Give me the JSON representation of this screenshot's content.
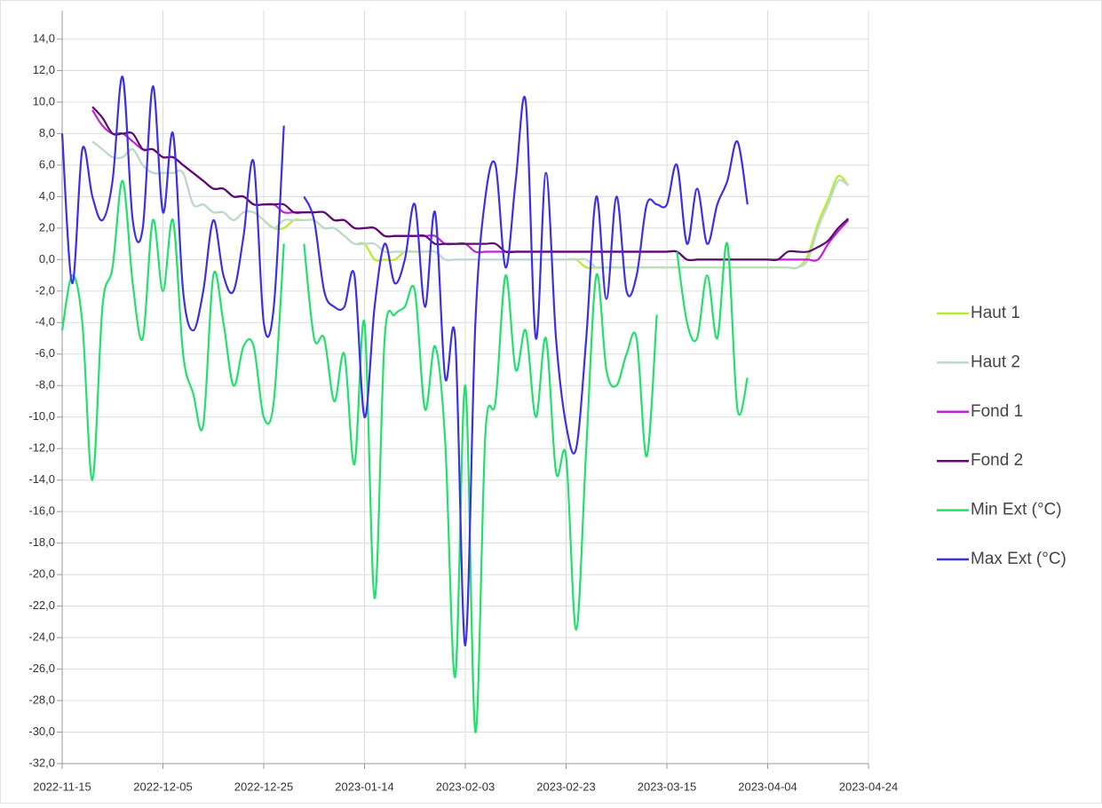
{
  "chart_data": {
    "type": "line",
    "x": [
      "2022-11-15",
      "2022-11-17",
      "2022-11-19",
      "2022-11-21",
      "2022-11-23",
      "2022-11-25",
      "2022-11-27",
      "2022-11-29",
      "2022-12-01",
      "2022-12-03",
      "2022-12-05",
      "2022-12-07",
      "2022-12-09",
      "2022-12-11",
      "2022-12-13",
      "2022-12-15",
      "2022-12-17",
      "2022-12-19",
      "2022-12-21",
      "2022-12-23",
      "2022-12-25",
      "2022-12-27",
      "2022-12-29",
      "2022-12-31",
      "2023-01-02",
      "2023-01-04",
      "2023-01-06",
      "2023-01-08",
      "2023-01-10",
      "2023-01-12",
      "2023-01-14",
      "2023-01-16",
      "2023-01-18",
      "2023-01-20",
      "2023-01-22",
      "2023-01-24",
      "2023-01-26",
      "2023-01-28",
      "2023-01-30",
      "2023-02-01",
      "2023-02-03",
      "2023-02-05",
      "2023-02-07",
      "2023-02-09",
      "2023-02-11",
      "2023-02-13",
      "2023-02-15",
      "2023-02-17",
      "2023-02-19",
      "2023-02-21",
      "2023-02-23",
      "2023-02-25",
      "2023-02-27",
      "2023-03-01",
      "2023-03-03",
      "2023-03-05",
      "2023-03-07",
      "2023-03-09",
      "2023-03-11",
      "2023-03-13",
      "2023-03-15",
      "2023-03-17",
      "2023-03-19",
      "2023-03-21",
      "2023-03-23",
      "2023-03-25",
      "2023-03-27",
      "2023-03-29",
      "2023-03-31",
      "2023-04-02",
      "2023-04-04",
      "2023-04-06",
      "2023-04-08",
      "2023-04-10",
      "2023-04-12",
      "2023-04-14",
      "2023-04-16",
      "2023-04-18",
      "2023-04-20"
    ],
    "xlim": [
      "2022-11-15",
      "2023-04-24"
    ],
    "xticks": [
      "2022-11-15",
      "2022-12-05",
      "2022-12-25",
      "2023-01-14",
      "2023-02-03",
      "2023-02-23",
      "2023-03-15",
      "2023-04-04",
      "2023-04-24"
    ],
    "ylim": [
      -32,
      14
    ],
    "yticks": [
      {
        "value": 14,
        "label": "14,0"
      },
      {
        "value": 12,
        "label": "12,0"
      },
      {
        "value": 10,
        "label": "10,0"
      },
      {
        "value": 8,
        "label": "8,0"
      },
      {
        "value": 6,
        "label": "6,0"
      },
      {
        "value": 4,
        "label": "4,0"
      },
      {
        "value": 2,
        "label": "2,0"
      },
      {
        "value": 0,
        "label": "0,0"
      },
      {
        "value": -2,
        "label": "-2,0"
      },
      {
        "value": -4,
        "label": "-4,0"
      },
      {
        "value": -6,
        "label": "-6,0"
      },
      {
        "value": -8,
        "label": "-8,0"
      },
      {
        "value": -10,
        "label": "-10,0"
      },
      {
        "value": -12,
        "label": "-12,0"
      },
      {
        "value": -14,
        "label": "-14,0"
      },
      {
        "value": -16,
        "label": "-16,0"
      },
      {
        "value": -18,
        "label": "-18,0"
      },
      {
        "value": -20,
        "label": "-20,0"
      },
      {
        "value": -22,
        "label": "-22,0"
      },
      {
        "value": -24,
        "label": "-24,0"
      },
      {
        "value": -26,
        "label": "-26,0"
      },
      {
        "value": -28,
        "label": "-28,0"
      },
      {
        "value": -30,
        "label": "-30,0"
      },
      {
        "value": -32,
        "label": "-32,0"
      }
    ],
    "grid": true,
    "legend": "right",
    "series": [
      {
        "name": "Haut 1",
        "color": "#b8ec2a",
        "values": [
          null,
          null,
          null,
          7.5,
          7,
          6.5,
          6.5,
          7,
          6,
          5.5,
          5.5,
          5.5,
          5.5,
          3.5,
          3.5,
          3,
          3,
          2.5,
          3,
          3,
          2.5,
          2,
          2,
          2.5,
          2.5,
          2.5,
          2,
          2,
          1.5,
          1,
          1,
          0,
          0,
          0,
          0.5,
          0.5,
          0.5,
          0.5,
          0,
          0,
          0,
          0,
          0,
          0,
          0,
          0,
          0,
          0,
          0,
          0,
          0,
          0,
          -0.5,
          -0.5,
          -0.5,
          -0.5,
          -0.5,
          -0.5,
          -0.5,
          -0.5,
          -0.5,
          -0.5,
          -0.5,
          -0.5,
          -0.5,
          -0.5,
          -0.5,
          -0.5,
          -0.5,
          -0.5,
          -0.5,
          -0.5,
          -0.5,
          -0.5,
          0.3,
          2.3,
          3.8,
          5.3,
          4.7
        ]
      },
      {
        "name": "Haut 2",
        "color": "#bcd8d2",
        "values": [
          null,
          null,
          null,
          7.5,
          7,
          6.5,
          6.5,
          7,
          6,
          5.5,
          5.5,
          5.5,
          5.5,
          3.5,
          3.5,
          3,
          3,
          2.5,
          3,
          3,
          2.5,
          2,
          2.5,
          2.5,
          2.5,
          2.5,
          2,
          2,
          1.5,
          1,
          1,
          1,
          0.5,
          0.5,
          0.5,
          0.5,
          0.5,
          0.5,
          0,
          0,
          0,
          0,
          0,
          0,
          0,
          0,
          0,
          0,
          0,
          0,
          0,
          0,
          0,
          -0.5,
          -0.5,
          -0.5,
          -0.5,
          -0.5,
          -0.5,
          -0.5,
          -0.5,
          -0.5,
          -0.5,
          -0.5,
          -0.5,
          -0.5,
          -0.5,
          -0.5,
          -0.5,
          -0.5,
          -0.5,
          -0.5,
          -0.5,
          -0.5,
          0,
          2,
          3.5,
          5,
          4.7
        ]
      },
      {
        "name": "Fond 1",
        "color": "#c41fe0",
        "values": [
          null,
          null,
          null,
          9.5,
          8.5,
          8,
          8,
          7.5,
          7,
          7,
          6.5,
          6.5,
          6,
          5.5,
          5,
          4.5,
          4.5,
          4,
          4,
          3.5,
          3.5,
          3.5,
          3,
          3,
          3,
          3,
          3,
          2.5,
          2.5,
          2,
          2,
          2,
          1.5,
          1.5,
          1.5,
          1.5,
          1.5,
          1.5,
          1,
          1,
          1,
          0.5,
          0.5,
          0.5,
          0.5,
          0.5,
          0.5,
          0.5,
          0.5,
          0.5,
          0.5,
          0.5,
          0.5,
          0.5,
          0.5,
          0.5,
          0.5,
          0.5,
          0.5,
          0.5,
          0.5,
          0.5,
          0,
          0,
          0,
          0,
          0,
          0,
          0,
          0,
          0,
          0,
          0,
          0,
          0,
          0,
          1,
          1.8,
          2.5
        ]
      },
      {
        "name": "Fond 2",
        "color": "#5c0a6e",
        "values": [
          null,
          null,
          null,
          9.7,
          9,
          8,
          8,
          8,
          7,
          7,
          6.5,
          6.5,
          6,
          5.5,
          5,
          4.5,
          4.5,
          4,
          4,
          3.5,
          3.5,
          3.5,
          3.5,
          3,
          3,
          3,
          3,
          2.5,
          2.5,
          2,
          2,
          2,
          1.5,
          1.5,
          1.5,
          1.5,
          1.5,
          1,
          1,
          1,
          1,
          1,
          1,
          1,
          0.5,
          0.5,
          0.5,
          0.5,
          0.5,
          0.5,
          0.5,
          0.5,
          0.5,
          0.5,
          0.5,
          0.5,
          0.5,
          0.5,
          0.5,
          0.5,
          0.5,
          0.5,
          0,
          0,
          0,
          0,
          0,
          0,
          0,
          0,
          0,
          0,
          0.5,
          0.5,
          0.5,
          0.8,
          1.2,
          2,
          2.6
        ]
      },
      {
        "name": "Min Ext (°C)",
        "color": "#22e06c",
        "values": [
          -4.5,
          -1,
          -4,
          -14,
          -3,
          -0.5,
          5,
          -1.5,
          -5,
          2.5,
          -2,
          2.5,
          -6,
          -8.5,
          -10.5,
          -1,
          -4,
          -8,
          -5.5,
          -5.5,
          -10,
          -9,
          1,
          null,
          1,
          -5,
          -5,
          -9,
          -6,
          -13,
          -4,
          -21.5,
          -5,
          -3.5,
          -3,
          -2,
          -9.5,
          -5.5,
          -11.5,
          -26.5,
          -8,
          -30,
          -11,
          -9,
          -1,
          -7,
          -4.5,
          -10,
          -5,
          -13.5,
          -12.5,
          -23.5,
          -12,
          -1,
          -7,
          -8,
          -6,
          -5,
          -12.5,
          -3.5,
          null,
          0.5,
          -4,
          -5,
          -1,
          -5,
          1,
          -9.5,
          -7.5,
          null,
          null,
          null,
          null,
          null,
          null,
          null,
          null,
          null,
          null
        ]
      },
      {
        "name": "Max Ext (°C)",
        "color": "#3d30e4",
        "values": [
          8,
          -1.5,
          7,
          4,
          2.5,
          5,
          11.6,
          2.5,
          2,
          11,
          3,
          8,
          -2,
          -4.5,
          -2,
          2.5,
          -1,
          -2,
          1.5,
          6.2,
          -4,
          -3,
          8.5,
          null,
          4,
          2.5,
          -2,
          -3,
          -3,
          -1,
          -10,
          -3,
          1,
          -1.5,
          0,
          3.5,
          -3,
          3,
          -7.5,
          -5,
          -24.5,
          -4,
          4,
          6,
          -0.5,
          5,
          10,
          -5,
          5.5,
          -5,
          -10.5,
          -12,
          -5,
          4,
          -2.5,
          4,
          -2,
          -1,
          3.5,
          3.5,
          3.5,
          6,
          1,
          4.5,
          1,
          3.5,
          5,
          7.5,
          3.5,
          null,
          null,
          null,
          null,
          null,
          null,
          null,
          null,
          null,
          null
        ]
      }
    ]
  }
}
